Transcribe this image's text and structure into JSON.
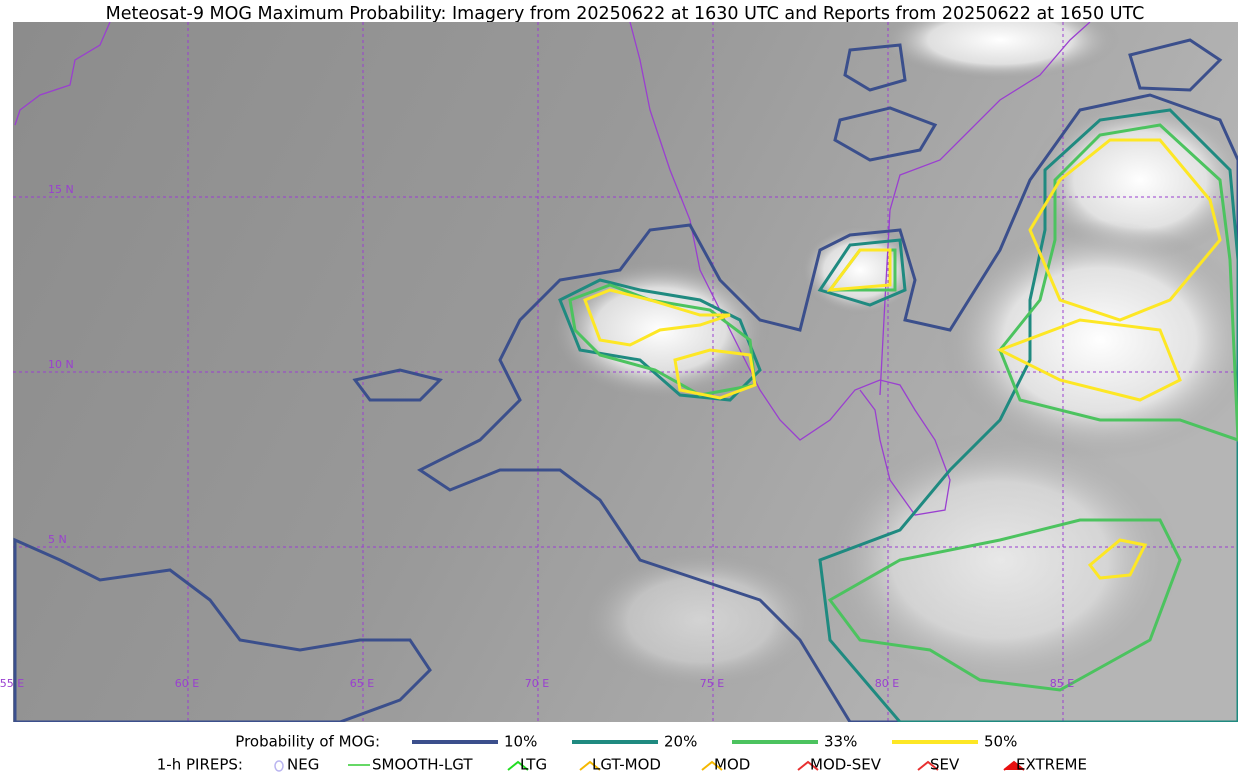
{
  "title": "Meteosat-9 MOG Maximum Probability: Imagery from 20250622 at 1630 UTC and Reports from 20250622 at 1650 UTC",
  "lat_labels": [
    "15 N",
    "10 N",
    "5 N"
  ],
  "lon_labels": [
    "55 E",
    "60 E",
    "65 E",
    "70 E",
    "75 E",
    "80 E",
    "85 E"
  ],
  "probability_legend": {
    "title": "Probability of MOG:",
    "levels": [
      {
        "label": "10%",
        "color": "#3b4f8c"
      },
      {
        "label": "20%",
        "color": "#1f8a80"
      },
      {
        "label": "33%",
        "color": "#4cc35f"
      },
      {
        "label": "50%",
        "color": "#fde725"
      }
    ]
  },
  "pirep_legend": {
    "title": "1-h PIREPS:",
    "items": [
      {
        "label": "NEG",
        "color": "#b9b4f0"
      },
      {
        "label": "SMOOTH-LGT",
        "color": "#33cc33"
      },
      {
        "label": "LTG",
        "color": "#22dd22"
      },
      {
        "label": "LGT-MOD",
        "color": "#f5b800"
      },
      {
        "label": "MOD",
        "color": "#f5b800"
      },
      {
        "label": "MOD-SEV",
        "color": "#e83030"
      },
      {
        "label": "SEV",
        "color": "#e83030"
      },
      {
        "label": "EXTREME",
        "color": "#e81010"
      }
    ]
  }
}
